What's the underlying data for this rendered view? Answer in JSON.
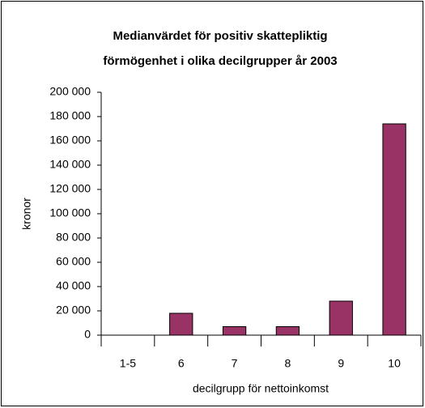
{
  "chart_data": {
    "type": "bar",
    "title": [
      "Medianvärdet för  positiv skattepliktig",
      "förmögenhet i olika decilgrupper år 2003"
    ],
    "x_label": "decilgrupp för nettoinkomst",
    "y_label": "kronor",
    "categories": [
      "1-5",
      "6",
      "7",
      "8",
      "9",
      "10"
    ],
    "values": [
      0,
      18000,
      7000,
      7000,
      28000,
      174000
    ],
    "color": "#993366",
    "ylim": [
      0,
      200000
    ],
    "yticks": [
      0,
      {
        "value": 20000,
        "label": "20 000"
      },
      {
        "value": 40000,
        "label": "40 000"
      },
      {
        "value": 60000,
        "label": "60 000"
      },
      {
        "value": 80000,
        "label": "80 000"
      },
      {
        "value": 100000,
        "label": "100 000"
      },
      {
        "value": 120000,
        "label": "120 000"
      },
      {
        "value": 140000,
        "label": "140 000"
      },
      {
        "value": 160000,
        "label": "160 000"
      },
      {
        "value": 180000,
        "label": "180 000"
      },
      {
        "value": 200000,
        "label": "200 000"
      }
    ],
    "grid": false
  }
}
